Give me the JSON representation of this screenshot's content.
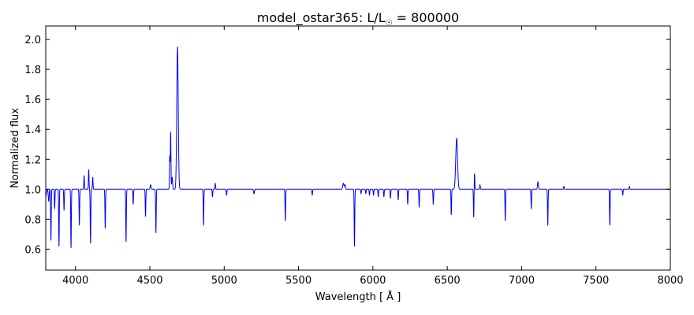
{
  "chart_data": {
    "type": "line",
    "title": "model_ostar365: L/L",
    "title_sub": "☉",
    "title_value": " = 800000",
    "xlabel": "Wavelength [ Å ]",
    "ylabel": "Normalized flux",
    "xlim": [
      3800,
      8000
    ],
    "ylim": [
      0.46,
      2.09
    ],
    "xticks": [
      4000,
      4500,
      5000,
      5500,
      6000,
      6500,
      7000,
      7500,
      8000
    ],
    "yticks": [
      0.6,
      0.8,
      1.0,
      1.2,
      1.4,
      1.6,
      1.8,
      2.0
    ],
    "ytick_labels": [
      "0.6",
      "0.8",
      "1.0",
      "1.2",
      "1.4",
      "1.6",
      "1.8",
      "2.0"
    ],
    "grid": false,
    "series_color": "#0000ff",
    "series": [
      {
        "continuum": 1.0,
        "lines": [
          {
            "x": 3800,
            "depth": -0.05,
            "w": 4
          },
          {
            "x": 3820,
            "depth": -0.08,
            "w": 3
          },
          {
            "x": 3835,
            "depth": -0.34,
            "w": 2
          },
          {
            "x": 3860,
            "depth": -0.13,
            "w": 2
          },
          {
            "x": 3889,
            "depth": -0.38,
            "w": 2
          },
          {
            "x": 3923,
            "depth": -0.14,
            "w": 2
          },
          {
            "x": 3970,
            "depth": -0.39,
            "w": 2
          },
          {
            "x": 4026,
            "depth": -0.24,
            "w": 2
          },
          {
            "x": 4058,
            "depth": 0.09,
            "w": 2
          },
          {
            "x": 4089,
            "depth": 0.13,
            "w": 2
          },
          {
            "x": 4101,
            "depth": -0.36,
            "w": 2
          },
          {
            "x": 4116,
            "depth": 0.08,
            "w": 2
          },
          {
            "x": 4200,
            "depth": -0.26,
            "w": 2
          },
          {
            "x": 4340,
            "depth": -0.35,
            "w": 2
          },
          {
            "x": 4388,
            "depth": -0.1,
            "w": 2
          },
          {
            "x": 4471,
            "depth": -0.18,
            "w": 2
          },
          {
            "x": 4505,
            "depth": 0.03,
            "w": 3
          },
          {
            "x": 4541,
            "depth": -0.29,
            "w": 2
          },
          {
            "x": 4634,
            "depth": 0.22,
            "w": 2
          },
          {
            "x": 4640,
            "depth": 0.38,
            "w": 2
          },
          {
            "x": 4650,
            "depth": 0.08,
            "w": 3
          },
          {
            "x": 4686,
            "depth": 0.95,
            "w": 5
          },
          {
            "x": 4861,
            "depth": -0.24,
            "w": 2
          },
          {
            "x": 4921,
            "depth": -0.05,
            "w": 2
          },
          {
            "x": 4940,
            "depth": 0.04,
            "w": 2
          },
          {
            "x": 5016,
            "depth": -0.04,
            "w": 2
          },
          {
            "x": 5200,
            "depth": -0.03,
            "w": 3
          },
          {
            "x": 5411,
            "depth": -0.21,
            "w": 2
          },
          {
            "x": 5592,
            "depth": -0.04,
            "w": 2
          },
          {
            "x": 5801,
            "depth": 0.04,
            "w": 4
          },
          {
            "x": 5812,
            "depth": 0.03,
            "w": 3
          },
          {
            "x": 5876,
            "depth": -0.38,
            "w": 2
          },
          {
            "x": 5920,
            "depth": -0.03,
            "w": 2
          },
          {
            "x": 5952,
            "depth": -0.03,
            "w": 2
          },
          {
            "x": 5977,
            "depth": -0.04,
            "w": 2
          },
          {
            "x": 6004,
            "depth": -0.04,
            "w": 2
          },
          {
            "x": 6036,
            "depth": -0.05,
            "w": 2
          },
          {
            "x": 6074,
            "depth": -0.05,
            "w": 2
          },
          {
            "x": 6118,
            "depth": -0.06,
            "w": 2
          },
          {
            "x": 6170,
            "depth": -0.07,
            "w": 2
          },
          {
            "x": 6234,
            "depth": -0.1,
            "w": 2
          },
          {
            "x": 6311,
            "depth": -0.12,
            "w": 2
          },
          {
            "x": 6406,
            "depth": -0.1,
            "w": 2
          },
          {
            "x": 6527,
            "depth": -0.17,
            "w": 2
          },
          {
            "x": 6563,
            "depth": 0.34,
            "w": 6
          },
          {
            "x": 6678,
            "depth": -0.19,
            "w": 2
          },
          {
            "x": 6683,
            "depth": 0.11,
            "w": 2
          },
          {
            "x": 6720,
            "depth": 0.03,
            "w": 2
          },
          {
            "x": 6890,
            "depth": -0.21,
            "w": 2
          },
          {
            "x": 7065,
            "depth": -0.13,
            "w": 2
          },
          {
            "x": 7110,
            "depth": 0.05,
            "w": 3
          },
          {
            "x": 7176,
            "depth": -0.24,
            "w": 2
          },
          {
            "x": 7284,
            "depth": 0.02,
            "w": 2
          },
          {
            "x": 7593,
            "depth": -0.24,
            "w": 2
          },
          {
            "x": 7680,
            "depth": -0.04,
            "w": 2
          },
          {
            "x": 7725,
            "depth": 0.02,
            "w": 2
          }
        ]
      }
    ]
  }
}
